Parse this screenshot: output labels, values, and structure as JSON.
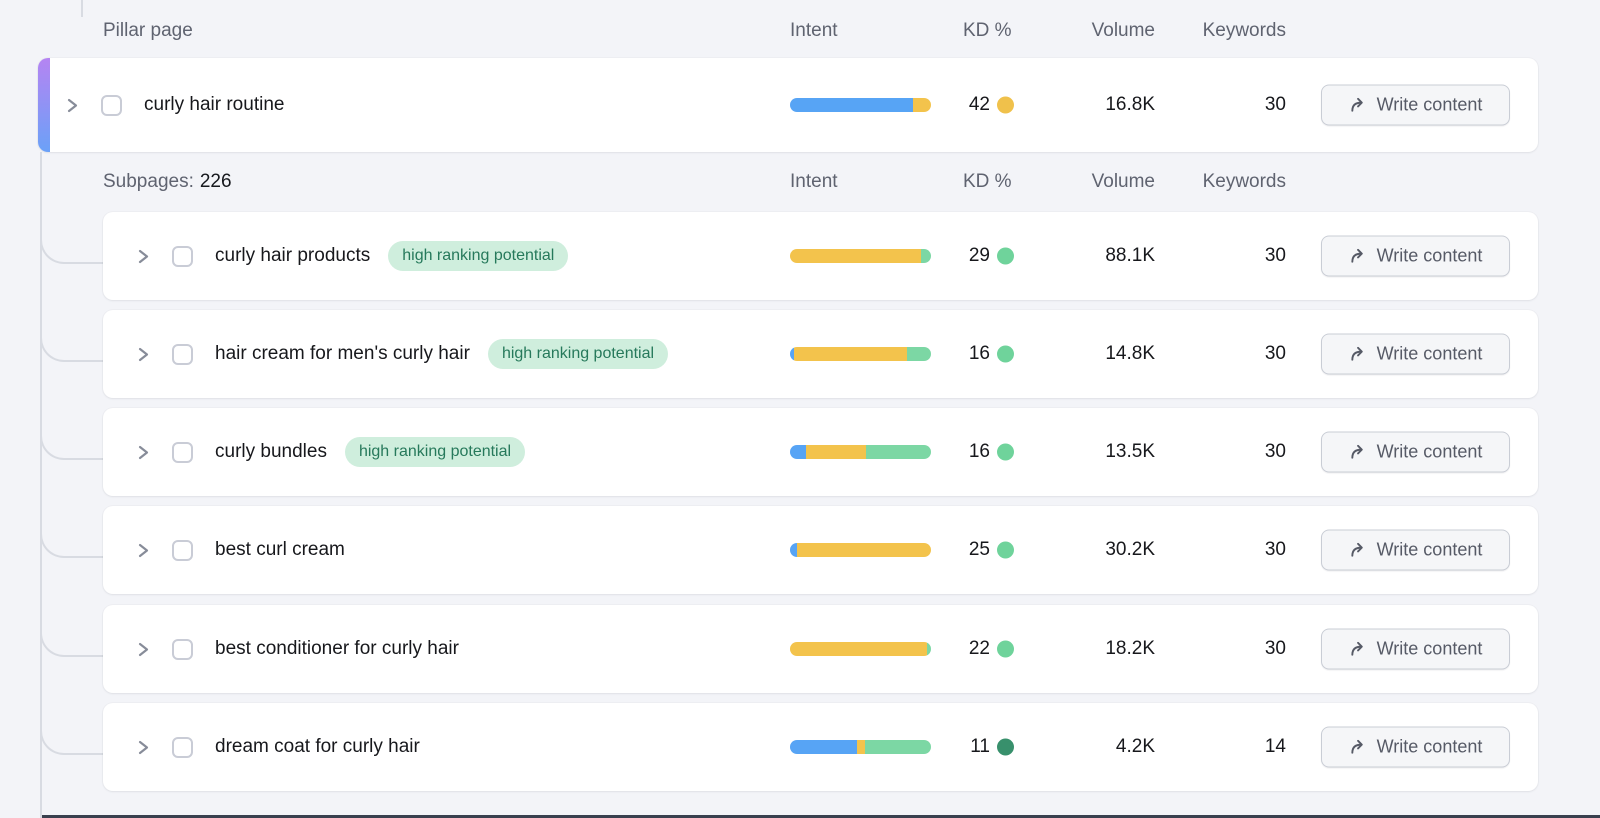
{
  "columns": {
    "pillar": "Pillar page",
    "intent": "Intent",
    "kd": "KD %",
    "volume": "Volume",
    "keywords": "Keywords"
  },
  "subpages_label": "Subpages:",
  "subpages_count": "226",
  "badge_label": "high ranking potential",
  "button_label": "Write content",
  "intent_colors": {
    "informational": "#57a4f5",
    "commercial": "#f3c34c",
    "transactional": "#7cd7a4"
  },
  "kd_dot_colors": {
    "possible": "#f0c14b",
    "easy": "#6fd39b",
    "very_easy": "#38906c"
  },
  "accent_gradient": {
    "from": "#b584f2",
    "to": "#6ba1f7"
  },
  "bottom_bar_color": "#39404e",
  "pillar_row": {
    "name": "curly hair routine",
    "kd": "42",
    "kd_level": "possible",
    "volume": "16.8K",
    "keywords": "30",
    "badge": false,
    "intent_segments": [
      {
        "type": "informational",
        "pct": 87.5
      },
      {
        "type": "commercial",
        "pct": 12.5
      }
    ]
  },
  "subpage_rows": [
    {
      "name": "curly hair products",
      "badge": true,
      "kd": "29",
      "kd_level": "easy",
      "volume": "88.1K",
      "keywords": "30",
      "intent_segments": [
        {
          "type": "commercial",
          "pct": 93
        },
        {
          "type": "transactional",
          "pct": 7
        }
      ]
    },
    {
      "name": "hair cream for men's curly hair",
      "badge": true,
      "kd": "16",
      "kd_level": "easy",
      "volume": "14.8K",
      "keywords": "30",
      "intent_segments": [
        {
          "type": "informational",
          "pct": 3
        },
        {
          "type": "commercial",
          "pct": 80
        },
        {
          "type": "transactional",
          "pct": 17
        }
      ]
    },
    {
      "name": "curly bundles",
      "badge": true,
      "kd": "16",
      "kd_level": "easy",
      "volume": "13.5K",
      "keywords": "30",
      "intent_segments": [
        {
          "type": "informational",
          "pct": 11
        },
        {
          "type": "commercial",
          "pct": 43
        },
        {
          "type": "transactional",
          "pct": 46
        }
      ]
    },
    {
      "name": "best curl cream",
      "badge": false,
      "kd": "25",
      "kd_level": "easy",
      "volume": "30.2K",
      "keywords": "30",
      "intent_segments": [
        {
          "type": "informational",
          "pct": 5
        },
        {
          "type": "commercial",
          "pct": 95
        }
      ]
    },
    {
      "name": "best conditioner for curly hair",
      "badge": false,
      "kd": "22",
      "kd_level": "easy",
      "volume": "18.2K",
      "keywords": "30",
      "intent_segments": [
        {
          "type": "commercial",
          "pct": 97.5
        },
        {
          "type": "transactional",
          "pct": 2.5
        }
      ]
    },
    {
      "name": "dream coat for curly hair",
      "badge": false,
      "kd": "11",
      "kd_level": "very_easy",
      "volume": "4.2K",
      "keywords": "14",
      "intent_segments": [
        {
          "type": "informational",
          "pct": 47.5
        },
        {
          "type": "commercial",
          "pct": 6
        },
        {
          "type": "transactional",
          "pct": 46.5
        }
      ]
    }
  ]
}
